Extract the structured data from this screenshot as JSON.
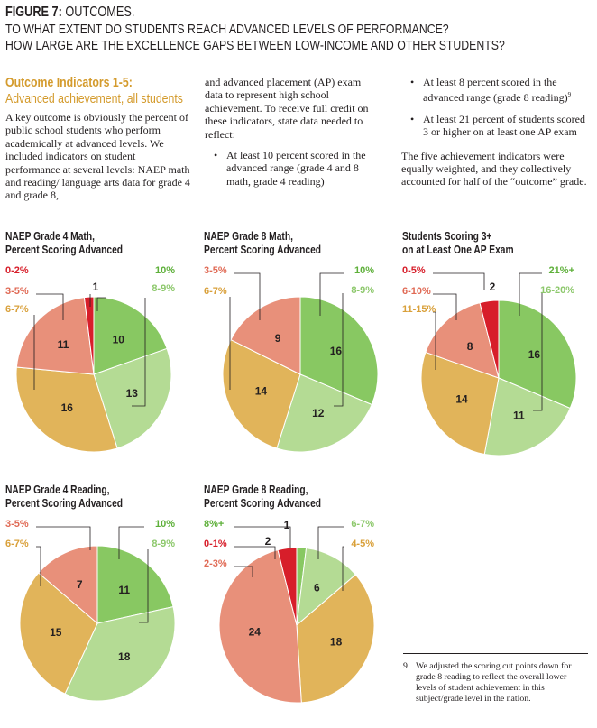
{
  "figure": {
    "label": "FIGURE 7:",
    "title": "OUTCOMES.",
    "question1": "TO WHAT EXTENT DO STUDENTS REACH ADVANCED LEVELS OF PERFORMANCE?",
    "question2": "HOW LARGE ARE THE EXCELLENCE GAPS BETWEEN LOW-INCOME AND OTHER STUDENTS?"
  },
  "section": {
    "title": "Outcome Indicators 1-5:",
    "subtitle": "Advanced achievement, all students"
  },
  "text": {
    "col1": "A key outcome is obviously the percent of public school students who perform academically at advanced levels. We included indicators on student performance at several levels: NAEP math and reading/ language arts data for grade 4 and grade 8,",
    "col2_intro": "and advanced placement (AP) exam data to represent high school achievement. To receive full credit on these indicators, state data needed to reflect:",
    "bullet1": "At least 10 percent scored in the advanced range (grade 4 and 8 math, grade 4 reading)",
    "bullet2": "At least 8 percent scored in the advanced range (grade 8 reading)",
    "bullet2_sup": "9",
    "bullet3": "At least 21 percent of students scored 3 or higher on at least one AP exam",
    "closing": "The five achievement indicators were equally weighted, and they collectively accounted for half of the “outcome” grade.",
    "bullet_char": "•"
  },
  "footnote": {
    "number": "9",
    "text": "We adjusted the scoring cut points down for grade 8 reading to reflect the overall lower levels of student achievement in this subject/grade level in the nation."
  },
  "colors": {
    "band1": "#d71e2a",
    "band2": "#e8907a",
    "band3": "#e1b45a",
    "band4": "#b4db94",
    "band5": "#88c862",
    "band4_label": "#8dc86c",
    "band5_label": "#5eb03a",
    "band1_label": "#d71e2a",
    "band2_label": "#e06a55",
    "band3_label": "#d9a03a"
  },
  "chart_data": [
    {
      "type": "pie",
      "title_line1": "NAEP Grade 4 Math,",
      "title_line2": "Percent Scoring Advanced",
      "slices": [
        {
          "label": "10%",
          "value": 10,
          "band": "band5"
        },
        {
          "label": "8-9%",
          "value": 13,
          "band": "band4"
        },
        {
          "label": "6-7%",
          "value": 16,
          "band": "band3"
        },
        {
          "label": "3-5%",
          "value": 11,
          "band": "band2"
        },
        {
          "label": "0-2%",
          "value": 1,
          "band": "band1"
        }
      ]
    },
    {
      "type": "pie",
      "title_line1": "NAEP Grade 8 Math,",
      "title_line2": "Percent Scoring Advanced",
      "slices": [
        {
          "label": "10%",
          "value": 16,
          "band": "band5"
        },
        {
          "label": "8-9%",
          "value": 12,
          "band": "band4"
        },
        {
          "label": "6-7%",
          "value": 14,
          "band": "band3"
        },
        {
          "label": "3-5%",
          "value": 9,
          "band": "band2"
        }
      ]
    },
    {
      "type": "pie",
      "title_line1": "Students Scoring 3+",
      "title_line2": "on at Least One AP Exam",
      "slices": [
        {
          "label": "21%+",
          "value": 16,
          "band": "band5"
        },
        {
          "label": "16-20%",
          "value": 11,
          "band": "band4"
        },
        {
          "label": "11-15%",
          "value": 14,
          "band": "band3"
        },
        {
          "label": "6-10%",
          "value": 8,
          "band": "band2"
        },
        {
          "label": "0-5%",
          "value": 2,
          "band": "band1"
        }
      ]
    },
    {
      "type": "pie",
      "title_line1": "NAEP Grade 4 Reading,",
      "title_line2": "Percent Scoring Advanced",
      "slices": [
        {
          "label": "10%",
          "value": 11,
          "band": "band5"
        },
        {
          "label": "8-9%",
          "value": 18,
          "band": "band4"
        },
        {
          "label": "6-7%",
          "value": 15,
          "band": "band3"
        },
        {
          "label": "3-5%",
          "value": 7,
          "band": "band2"
        }
      ]
    },
    {
      "type": "pie",
      "title_line1": "NAEP Grade 8 Reading,",
      "title_line2": "Percent Scoring Advanced",
      "slices": [
        {
          "label": "8%+",
          "value": 1,
          "band": "band5"
        },
        {
          "label": "6-7%",
          "value": 6,
          "band": "band4"
        },
        {
          "label": "4-5%",
          "value": 18,
          "band": "band3"
        },
        {
          "label": "2-3%",
          "value": 24,
          "band": "band2"
        },
        {
          "label": "0-1%",
          "value": 2,
          "band": "band1"
        }
      ]
    }
  ]
}
